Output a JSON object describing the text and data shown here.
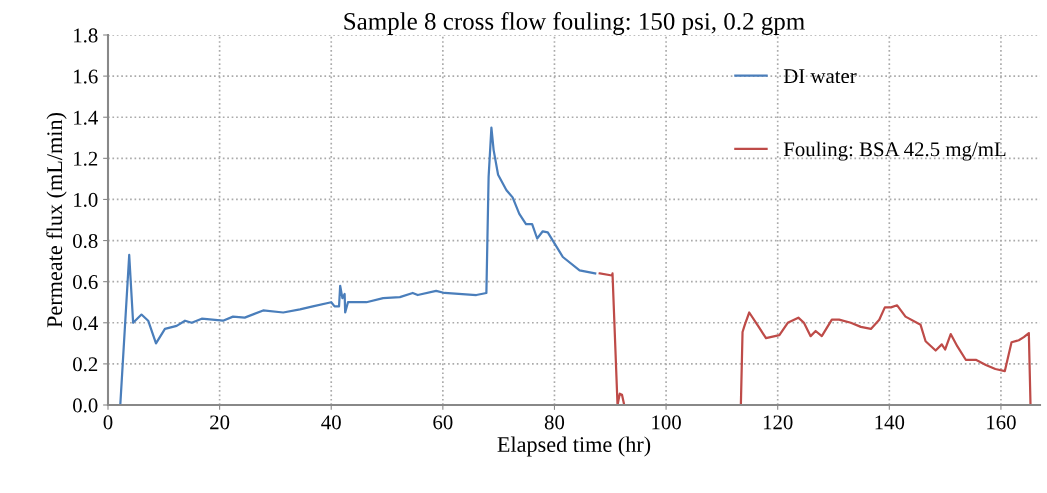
{
  "chart_data": {
    "type": "line",
    "title": "Sample 8 cross flow fouling: 150 psi, 0.2 gpm",
    "xlabel": "Elapsed time (hr)",
    "ylabel": "Permeate flux (mL/min)",
    "xlim": [
      0,
      167
    ],
    "xticks": [
      0,
      20,
      40,
      60,
      80,
      100,
      120,
      140,
      160
    ],
    "ylim": [
      0,
      1.8
    ],
    "yticks": [
      {
        "value": 0,
        "label": "0.0"
      },
      {
        "value": 0.2,
        "label": "0.2"
      },
      {
        "value": 0.4,
        "label": "0.4"
      },
      {
        "value": 0.6,
        "label": "0.6"
      },
      {
        "value": 0.8,
        "label": "0.8"
      },
      {
        "value": 1.0,
        "label": "1.0"
      },
      {
        "value": 1.2,
        "label": "1.2"
      },
      {
        "value": 1.4,
        "label": "1.4"
      },
      {
        "value": 1.6,
        "label": "1.6"
      },
      {
        "value": 1.8,
        "label": "1.8"
      }
    ],
    "grid": true,
    "legend": "top right",
    "marker": "none",
    "line_style": "solid",
    "series": [
      {
        "name": "DI water",
        "color": "#4a7ebb",
        "x": [
          1.5,
          2.2,
          3.8,
          4.5,
          6.0,
          7.2,
          8.6,
          10.2,
          12.3,
          13.8,
          15.0,
          16.8,
          20.6,
          22.4,
          24.5,
          27.8,
          31.4,
          34.4,
          36.7,
          40.0,
          40.6,
          41.4,
          41.6,
          42.0,
          42.4,
          42.5,
          43.0,
          46.3,
          49.3,
          52.3,
          54.6,
          55.5,
          58.8,
          60.3,
          66.0,
          67.8,
          68.2,
          68.7,
          69.1,
          69.9,
          71.4,
          72.5,
          73.7,
          74.9,
          76.0,
          76.9,
          77.9,
          78.8,
          81.5,
          84.5,
          87.3
        ],
        "values": [
          0,
          0,
          0.73,
          0.4,
          0.44,
          0.41,
          0.3,
          0.37,
          0.385,
          0.41,
          0.4,
          0.42,
          0.41,
          0.43,
          0.425,
          0.46,
          0.45,
          0.465,
          0.48,
          0.5,
          0.48,
          0.48,
          0.58,
          0.52,
          0.54,
          0.45,
          0.5,
          0.5,
          0.52,
          0.525,
          0.545,
          0.535,
          0.555,
          0.545,
          0.535,
          0.545,
          1.11,
          1.35,
          1.24,
          1.12,
          1.045,
          1.01,
          0.93,
          0.88,
          0.88,
          0.81,
          0.845,
          0.84,
          0.72,
          0.655,
          0.64
        ]
      },
      {
        "name": "Fouling: BSA 42.5 mg/mL",
        "color": "#be4b48",
        "x": [
          88.1,
          90.3,
          90.4,
          91.3,
          91.7,
          92.1,
          92.5,
          113.4,
          113.7,
          114.1,
          114.9,
          116.6,
          117.9,
          120.3,
          121.8,
          123.7,
          124.7,
          125.9,
          126.8,
          127.9,
          129.7,
          131.0,
          133.1,
          134.9,
          136.7,
          138.2,
          139.2,
          140.3,
          141.4,
          142.9,
          145.6,
          146.5,
          148.3,
          149.4,
          150.0,
          151.0,
          152.2,
          153.7,
          155.5,
          157.3,
          159.0,
          160.7,
          161.9,
          163.2,
          164.1,
          165.0,
          165.3
        ],
        "values": [
          0.64,
          0.63,
          0.64,
          0,
          0.055,
          0.05,
          0,
          0,
          0.355,
          0.39,
          0.45,
          0.38,
          0.325,
          0.34,
          0.4,
          0.425,
          0.4,
          0.335,
          0.36,
          0.335,
          0.415,
          0.415,
          0.4,
          0.38,
          0.37,
          0.415,
          0.475,
          0.475,
          0.485,
          0.43,
          0.39,
          0.31,
          0.265,
          0.295,
          0.27,
          0.345,
          0.285,
          0.22,
          0.22,
          0.195,
          0.175,
          0.165,
          0.305,
          0.315,
          0.33,
          0.35,
          0
        ]
      }
    ]
  }
}
